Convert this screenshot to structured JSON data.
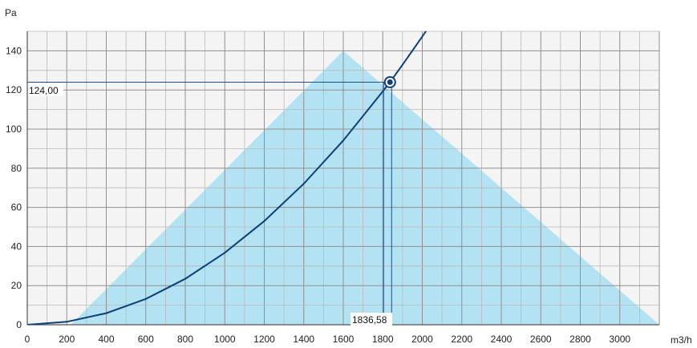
{
  "chart_data": {
    "type": "line",
    "xlabel": "m3/h",
    "ylabel": "Pa",
    "xlim": [
      0,
      3200
    ],
    "ylim": [
      0,
      150
    ],
    "x_ticks": [
      0,
      200,
      400,
      600,
      800,
      1000,
      1200,
      1400,
      1600,
      1800,
      2000,
      2200,
      2400,
      2600,
      2800,
      3000
    ],
    "y_ticks": [
      0,
      20,
      40,
      60,
      80,
      100,
      120,
      140
    ],
    "x_tick_labels": [
      "0",
      "200",
      "400",
      "600",
      "800",
      "1000",
      "1200",
      "1400",
      "1600",
      "1800",
      "2000",
      "2200",
      "2400",
      "2600",
      "2800",
      "3000"
    ],
    "y_tick_labels": [
      "0",
      "20",
      "40",
      "60",
      "80",
      "100",
      "120",
      "140"
    ],
    "grid": true,
    "working_region": {
      "x": [
        220,
        1600,
        3200
      ],
      "y": [
        0,
        140,
        0
      ],
      "color": "#b3e3f2"
    },
    "system_curve": {
      "x": [
        0,
        200,
        400,
        600,
        800,
        1000,
        1200,
        1400,
        1600,
        1800,
        1836.58,
        1900,
        2000,
        2050
      ],
      "y": [
        0,
        1.5,
        5.9,
        13.2,
        23.5,
        36.8,
        53.0,
        72.1,
        94.2,
        119.3,
        124.0,
        132.9,
        147.3,
        154.7
      ],
      "color": "#0d3f7a"
    },
    "operating_point": {
      "x": 1836.58,
      "y": 124.0,
      "x_label": "1836,58",
      "y_label": "124,00"
    }
  }
}
